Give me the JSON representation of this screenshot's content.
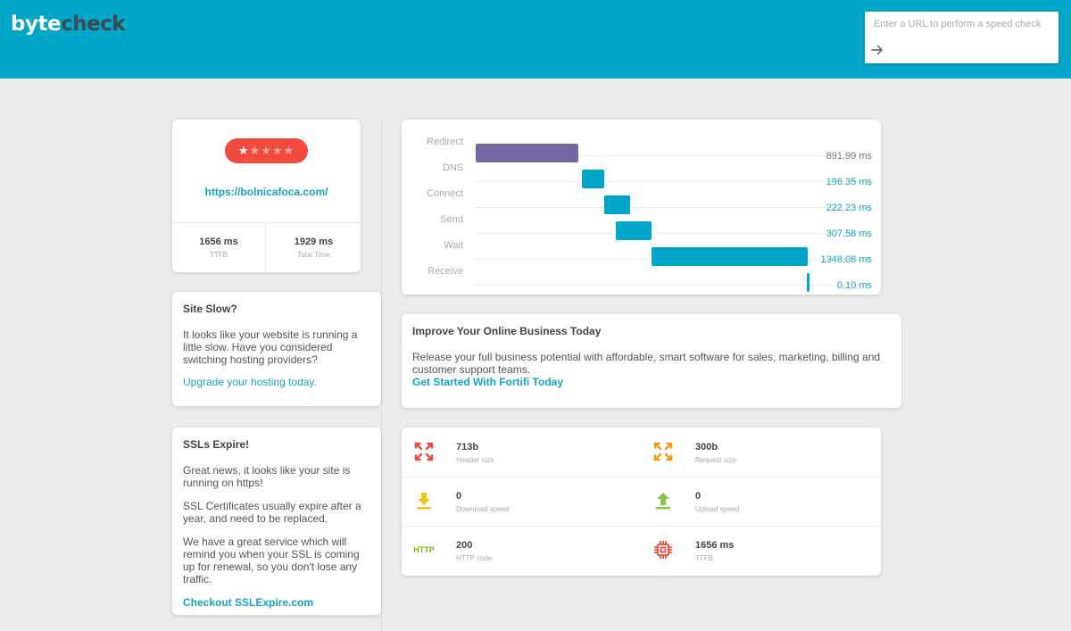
{
  "app": {
    "logo_part1": "byte",
    "logo_part2": "check"
  },
  "search": {
    "placeholder": "Enter a URL to perform a speed check",
    "value": ""
  },
  "score": {
    "rating": 1,
    "max_rating": 5,
    "url": "https://bolnicafoca.com/",
    "ttfb_value": "1656 ms",
    "ttfb_label": "TTFB",
    "total_value": "1929 ms",
    "total_label": "Total Time"
  },
  "slow_card": {
    "title": "Site Slow?",
    "body": "It looks like your website is running a little slow. Have you considered switching hosting providers?",
    "link": "Upgrade your hosting today."
  },
  "ssl_card": {
    "title": "SSLs Expire!",
    "p1": "Great news, it looks like your site is running on https!",
    "p2": "SSL Certificates usually expire after a year, and need to be replaced.",
    "p3": "We have a great service which will remind you when your SSL is coming up for renewal, so you don't lose any traffic.",
    "link": "Checkout SSLExpire.com"
  },
  "waterfall": {
    "rows": [
      {
        "label": "Redirect",
        "value": "891.99 ms",
        "start_ms": 0,
        "duration_ms": 891.99,
        "color": "#7467a3"
      },
      {
        "label": "DNS",
        "value": "196.35 ms",
        "start_ms": 919.14,
        "duration_ms": 196.35,
        "color": "#00a6c8"
      },
      {
        "label": "Connect",
        "value": "222.23 ms",
        "start_ms": 1114.09,
        "duration_ms": 222.23,
        "color": "#00a6c8"
      },
      {
        "label": "Send",
        "value": "307.58 ms",
        "start_ms": 1215.13,
        "duration_ms": 307.58,
        "color": "#00a6c8"
      },
      {
        "label": "Wait",
        "value": "1348.08 ms",
        "start_ms": 1526.08,
        "duration_ms": 1348.08,
        "color": "#00a6c8"
      },
      {
        "label": "Receive",
        "value": "0.10 ms",
        "start_ms": 2867.58,
        "duration_ms": 0.1,
        "color": "#00a6c8"
      }
    ]
  },
  "promo": {
    "title": "Improve Your Online Business Today",
    "body": "Release your full business potential with affordable, smart software for sales, marketing, billing and customer support teams.",
    "link": "Get Started With Fortifi Today"
  },
  "stats": {
    "header_size_value": "713b",
    "header_size_label": "Header size",
    "request_size_value": "300b",
    "request_size_label": "Request size",
    "download_value": "0",
    "download_label": "Download speed",
    "upload_value": "0",
    "upload_label": "Upload speed",
    "http_value": "200",
    "http_label": "HTTP code",
    "http_icon_text": "HTTP",
    "ttfb_value": "1656 ms",
    "ttfb_label": "TTFB"
  },
  "colors": {
    "header": "#00a6c8",
    "accent": "#16a5c4",
    "rating_badge": "#f24a3f",
    "redirect_bar": "#7467a3",
    "expand_red": "#e74c3c",
    "expand_orange": "#f39c12",
    "download_yellow": "#f1c40f",
    "upload_green": "#8bc34a",
    "http_green": "#7cb518",
    "chip_red": "#e74c3c"
  }
}
